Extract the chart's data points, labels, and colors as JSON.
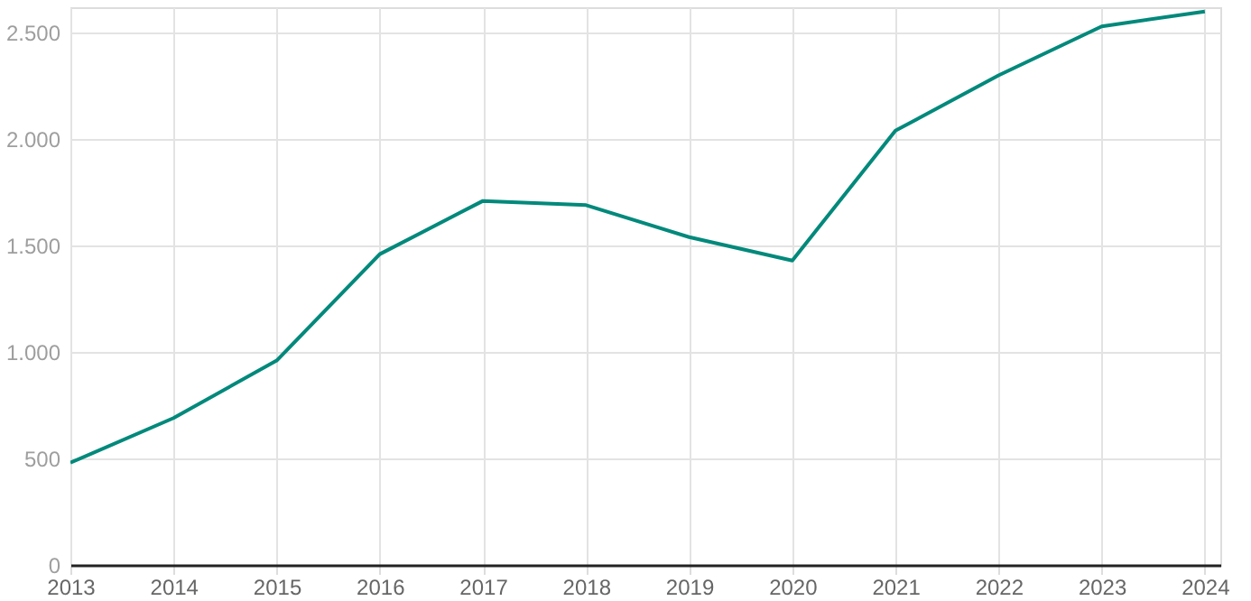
{
  "chart_data": {
    "type": "line",
    "x": [
      2013,
      2014,
      2015,
      2016,
      2017,
      2018,
      2019,
      2020,
      2021,
      2022,
      2023,
      2024
    ],
    "series": [
      {
        "color": "#00897b",
        "values": [
          480,
          690,
          960,
          1460,
          1710,
          1690,
          1540,
          1430,
          2040,
          2300,
          2530,
          2600
        ]
      }
    ],
    "xlim": [
      2013,
      2024.15
    ],
    "xticks": [
      2013,
      2014,
      2015,
      2016,
      2017,
      2018,
      2019,
      2020,
      2021,
      2022,
      2023,
      2024
    ],
    "ylim": [
      0,
      2620
    ],
    "yticks": [
      0,
      500,
      {
        "value": 1000,
        "label": "1.000"
      },
      {
        "value": 1500,
        "label": "1.500"
      },
      {
        "value": 2000,
        "label": "2.000"
      },
      {
        "value": 2500,
        "label": "2.500"
      }
    ],
    "grid": true,
    "marker": "none",
    "line_style": "solid"
  }
}
